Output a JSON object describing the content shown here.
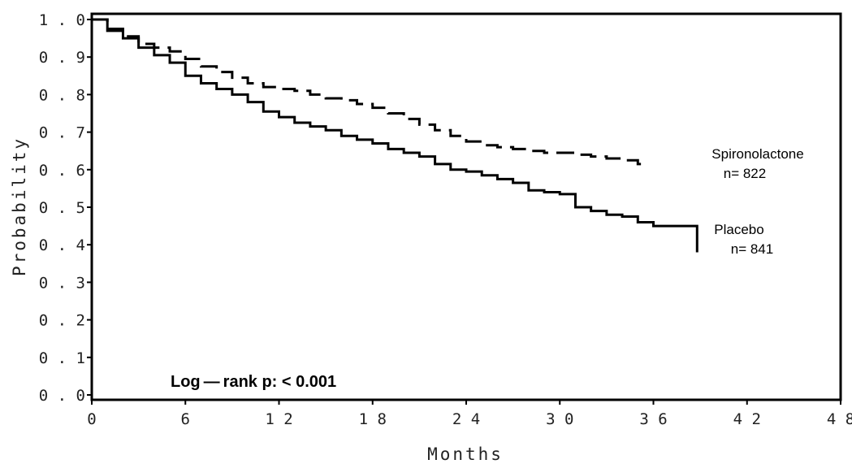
{
  "chart_data": {
    "type": "line",
    "title": "",
    "xlabel": "Months",
    "ylabel": "Probability",
    "xlim": [
      0,
      48
    ],
    "ylim": [
      0.0,
      1.0
    ],
    "x_ticks": [
      0,
      6,
      12,
      18,
      24,
      30,
      36,
      42,
      48
    ],
    "y_ticks": [
      "0.0",
      "0.1",
      "0.2",
      "0.3",
      "0.4",
      "0.5",
      "0.6",
      "0.7",
      "0.8",
      "0.9",
      "1.0"
    ],
    "grid": false,
    "series": [
      {
        "name": "Spironolactone",
        "n_label": "n= 822",
        "line_style": "dashed",
        "color": "#000000",
        "points": [
          [
            0,
            1.0
          ],
          [
            1,
            0.975
          ],
          [
            2,
            0.955
          ],
          [
            3,
            0.935
          ],
          [
            4,
            0.925
          ],
          [
            5,
            0.915
          ],
          [
            6,
            0.895
          ],
          [
            7,
            0.875
          ],
          [
            8,
            0.86
          ],
          [
            9,
            0.845
          ],
          [
            10,
            0.83
          ],
          [
            11,
            0.82
          ],
          [
            12,
            0.815
          ],
          [
            13,
            0.81
          ],
          [
            14,
            0.8
          ],
          [
            15,
            0.79
          ],
          [
            16,
            0.785
          ],
          [
            17,
            0.775
          ],
          [
            18,
            0.765
          ],
          [
            19,
            0.75
          ],
          [
            20,
            0.735
          ],
          [
            21,
            0.72
          ],
          [
            22,
            0.705
          ],
          [
            23,
            0.69
          ],
          [
            24,
            0.675
          ],
          [
            25,
            0.665
          ],
          [
            26,
            0.66
          ],
          [
            27,
            0.655
          ],
          [
            28,
            0.65
          ],
          [
            29,
            0.645
          ],
          [
            30,
            0.645
          ],
          [
            31,
            0.64
          ],
          [
            32,
            0.635
          ],
          [
            33,
            0.63
          ],
          [
            34,
            0.625
          ],
          [
            35,
            0.615
          ],
          [
            35.2,
            0.605
          ]
        ]
      },
      {
        "name": "Placebo",
        "n_label": "n= 841",
        "line_style": "solid",
        "color": "#000000",
        "points": [
          [
            0,
            1.0
          ],
          [
            1,
            0.97
          ],
          [
            2,
            0.95
          ],
          [
            3,
            0.925
          ],
          [
            4,
            0.905
          ],
          [
            5,
            0.885
          ],
          [
            6,
            0.85
          ],
          [
            7,
            0.83
          ],
          [
            8,
            0.815
          ],
          [
            9,
            0.8
          ],
          [
            10,
            0.78
          ],
          [
            11,
            0.755
          ],
          [
            12,
            0.74
          ],
          [
            13,
            0.725
          ],
          [
            14,
            0.715
          ],
          [
            15,
            0.705
          ],
          [
            16,
            0.69
          ],
          [
            17,
            0.68
          ],
          [
            18,
            0.67
          ],
          [
            19,
            0.655
          ],
          [
            20,
            0.645
          ],
          [
            21,
            0.635
          ],
          [
            22,
            0.615
          ],
          [
            23,
            0.6
          ],
          [
            24,
            0.595
          ],
          [
            25,
            0.585
          ],
          [
            26,
            0.575
          ],
          [
            27,
            0.565
          ],
          [
            28,
            0.545
          ],
          [
            29,
            0.54
          ],
          [
            30,
            0.535
          ],
          [
            31,
            0.5
          ],
          [
            32,
            0.49
          ],
          [
            33,
            0.48
          ],
          [
            34,
            0.475
          ],
          [
            35,
            0.46
          ],
          [
            36,
            0.45
          ],
          [
            38.8,
            0.45
          ],
          [
            38.8,
            0.38
          ]
        ]
      }
    ],
    "annotation": "Log — rank  p:  < 0.001"
  }
}
